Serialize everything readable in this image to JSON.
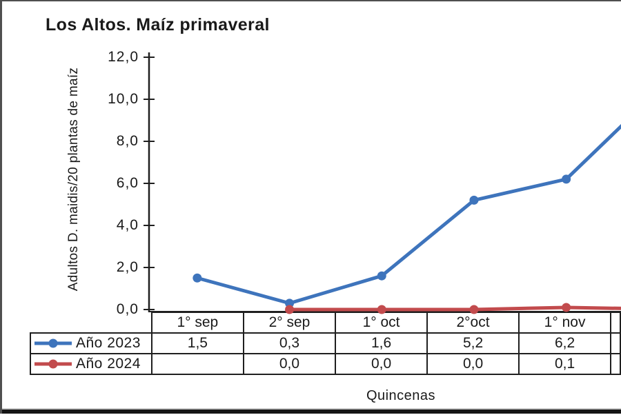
{
  "frame": {
    "background": "#ffffff",
    "border_color": "#4f4f4f",
    "bottom_bar_color": "#151515"
  },
  "chart_data": {
    "type": "line",
    "title": "Los Altos. Maíz primaveral",
    "xlabel": "Quincenas",
    "ylabel": "Adultos D. maidis/20 plantas de maíz",
    "categories": [
      "1° sep",
      "2° sep",
      "1° oct",
      "2°oct",
      "1° nov"
    ],
    "series": [
      {
        "name": "Año 2023",
        "color": "#3E74BC",
        "values": [
          1.5,
          0.3,
          1.6,
          5.2,
          6.2
        ],
        "line_exits_right_edge_at_value": 8.9
      },
      {
        "name": "Año 2024",
        "color": "#C24B4D",
        "values": [
          null,
          0.0,
          0.0,
          0.0,
          0.1
        ],
        "line_exits_right_edge_at_value": 0.05
      }
    ],
    "ylim": [
      0,
      12
    ],
    "ytick_labels": [
      "12,0",
      "10,0",
      "8,0",
      "6,0",
      "4,0",
      "2,0",
      "0,0"
    ],
    "grid": false,
    "legend_position": "table rows left of data table",
    "table_shows_values": true,
    "clipped_empty_column_on_right": true,
    "decimal_separator": ","
  }
}
